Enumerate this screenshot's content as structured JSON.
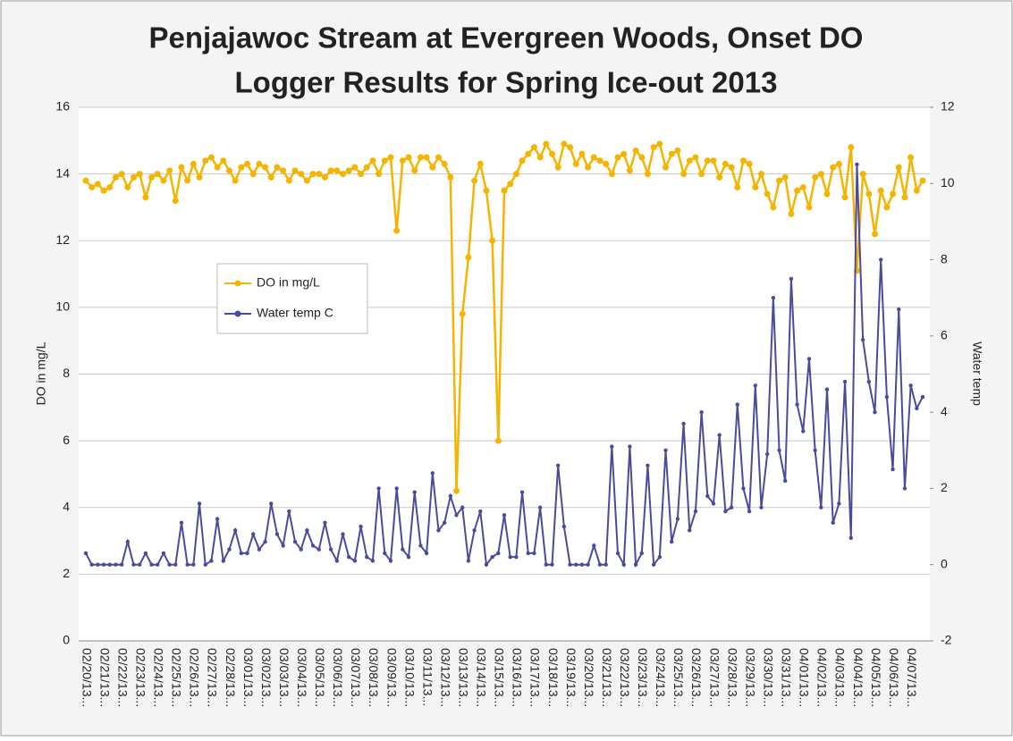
{
  "chart_data": {
    "type": "line",
    "title": [
      "Penjajawoc Stream at Evergreen Woods, Onset DO",
      "Logger Results for Spring Ice-out 2013"
    ],
    "y_label": "DO in mg/L",
    "y2_label": "Water temp",
    "categories": [
      "02/20/13...",
      null,
      null,
      "02/21/13...",
      null,
      null,
      "02/22/13...",
      null,
      null,
      "02/23/13...",
      null,
      null,
      "02/24/13...",
      null,
      null,
      "02/25/13...",
      null,
      null,
      "02/26/13...",
      null,
      null,
      "02/27/13...",
      null,
      null,
      "02/28/13...",
      null,
      null,
      "03/01/13...",
      null,
      null,
      "03/02/13...",
      null,
      null,
      "03/03/13...",
      null,
      null,
      "03/04/13...",
      null,
      null,
      "03/05/13...",
      null,
      null,
      "03/06/13...",
      null,
      null,
      "03/07/13...",
      null,
      null,
      "03/08/13...",
      null,
      null,
      "03/09/13...",
      null,
      null,
      "03/10/13...",
      null,
      null,
      "03/11/13...",
      null,
      null,
      "03/12/13...",
      null,
      null,
      "03/13/13...",
      null,
      null,
      "03/14/13...",
      null,
      null,
      "03/15/13...",
      null,
      null,
      "03/16/13...",
      null,
      null,
      "03/17/13...",
      null,
      null,
      "03/18/13...",
      null,
      null,
      "03/19/13...",
      null,
      null,
      "03/20/13...",
      null,
      null,
      "03/21/13...",
      null,
      null,
      "03/22/13...",
      null,
      null,
      "03/23/13...",
      null,
      null,
      "03/24/13...",
      null,
      null,
      "03/25/13...",
      null,
      null,
      "03/26/13...",
      null,
      null,
      "03/27/13...",
      null,
      null,
      "03/28/13...",
      null,
      null,
      "03/29/13...",
      null,
      null,
      "03/30/13...",
      null,
      null,
      "03/31/13...",
      null,
      null,
      "04/01/13...",
      null,
      null,
      "04/02/13...",
      null,
      null,
      "04/03/13...",
      null,
      null,
      "04/04/13...",
      null,
      null,
      "04/05/13...",
      null,
      null,
      "04/06/13...",
      null,
      null,
      "04/07/13...",
      null,
      null
    ],
    "series": [
      {
        "name": "DO in mg/L",
        "color": "#f5b400",
        "values": [
          13.8,
          13.6,
          13.7,
          13.5,
          13.6,
          13.9,
          14.0,
          13.6,
          13.9,
          14.0,
          13.3,
          13.9,
          14.0,
          13.8,
          14.1,
          13.2,
          14.2,
          13.8,
          14.3,
          13.9,
          14.4,
          14.5,
          14.2,
          14.4,
          14.1,
          13.8,
          14.2,
          14.3,
          14.0,
          14.3,
          14.2,
          13.9,
          14.2,
          14.1,
          13.8,
          14.1,
          14.0,
          13.8,
          14.0,
          14.0,
          13.9,
          14.1,
          14.1,
          14.0,
          14.1,
          14.2,
          14.0,
          14.2,
          14.4,
          14.0,
          14.4,
          14.5,
          12.3,
          14.4,
          14.5,
          14.1,
          14.5,
          14.5,
          14.2,
          14.5,
          14.3,
          13.9,
          4.5,
          9.8,
          11.5,
          13.8,
          14.3,
          13.5,
          12.0,
          6.0,
          13.5,
          13.7,
          14.0,
          14.4,
          14.6,
          14.8,
          14.5,
          14.9,
          14.6,
          14.2,
          14.9,
          14.8,
          14.3,
          14.6,
          14.2,
          14.5,
          14.4,
          14.3,
          14.0,
          14.5,
          14.6,
          14.1,
          14.7,
          14.5,
          14.0,
          14.8,
          14.9,
          14.2,
          14.6,
          14.7,
          14.0,
          14.4,
          14.5,
          14.0,
          14.4,
          14.4,
          13.9,
          14.3,
          14.2,
          13.6,
          14.4,
          14.3,
          13.6,
          14.0,
          13.4,
          13.0,
          13.8,
          13.9,
          12.8,
          13.5,
          13.6,
          13.0,
          13.9,
          14.0,
          13.4,
          14.2,
          14.3,
          13.3,
          14.8,
          11.1,
          14.0,
          13.4,
          12.2,
          13.5,
          13.0,
          13.4,
          14.2,
          13.3,
          14.5,
          13.5,
          13.8
        ]
      },
      {
        "name": "Water temp C",
        "color": "#4b4b9e",
        "axis": "y2",
        "values": [
          0.3,
          0,
          0,
          0,
          0,
          0,
          0,
          0.6,
          0,
          0,
          0.3,
          0,
          0,
          0.3,
          0,
          0,
          1.1,
          0,
          0,
          1.6,
          0,
          0.1,
          1.2,
          0.1,
          0.4,
          0.9,
          0.3,
          0.3,
          0.8,
          0.4,
          0.6,
          1.6,
          0.8,
          0.5,
          1.4,
          0.6,
          0.4,
          0.9,
          0.5,
          0.4,
          1.1,
          0.4,
          0.1,
          0.8,
          0.2,
          0.1,
          1.0,
          0.2,
          0.1,
          2.0,
          0.3,
          0.1,
          2.0,
          0.4,
          0.2,
          1.9,
          0.5,
          0.3,
          2.4,
          0.9,
          1.1,
          1.8,
          1.3,
          1.5,
          0.1,
          0.9,
          1.4,
          0,
          0.2,
          0.3,
          1.3,
          0.2,
          0.2,
          1.9,
          0.3,
          0.3,
          1.5,
          0,
          0,
          2.6,
          1.0,
          0,
          0,
          0,
          0,
          0.5,
          0,
          0,
          3.1,
          0.3,
          0,
          3.1,
          0,
          0.3,
          2.6,
          0,
          0.2,
          3.0,
          0.6,
          1.2,
          3.7,
          0.9,
          1.4,
          4.0,
          1.8,
          1.6,
          3.4,
          1.4,
          1.5,
          4.2,
          2.0,
          1.4,
          4.7,
          1.5,
          2.9,
          7.0,
          3.0,
          2.2,
          7.5,
          4.2,
          3.5,
          5.4,
          3.0,
          1.5,
          4.6,
          1.1,
          1.6,
          4.8,
          0.7,
          10.5,
          5.9,
          4.8,
          4.0,
          8.0,
          4.4,
          2.5,
          6.7,
          2.0,
          4.7,
          4.1,
          4.4
        ]
      }
    ],
    "ylim": [
      0,
      16
    ],
    "yticks": [
      0,
      2,
      4,
      6,
      8,
      10,
      12,
      14,
      16
    ],
    "y2lim": [
      -2,
      12
    ],
    "y2ticks": [
      -2,
      0,
      2,
      4,
      6,
      8,
      10,
      12
    ],
    "grid": true,
    "legend": "left"
  }
}
